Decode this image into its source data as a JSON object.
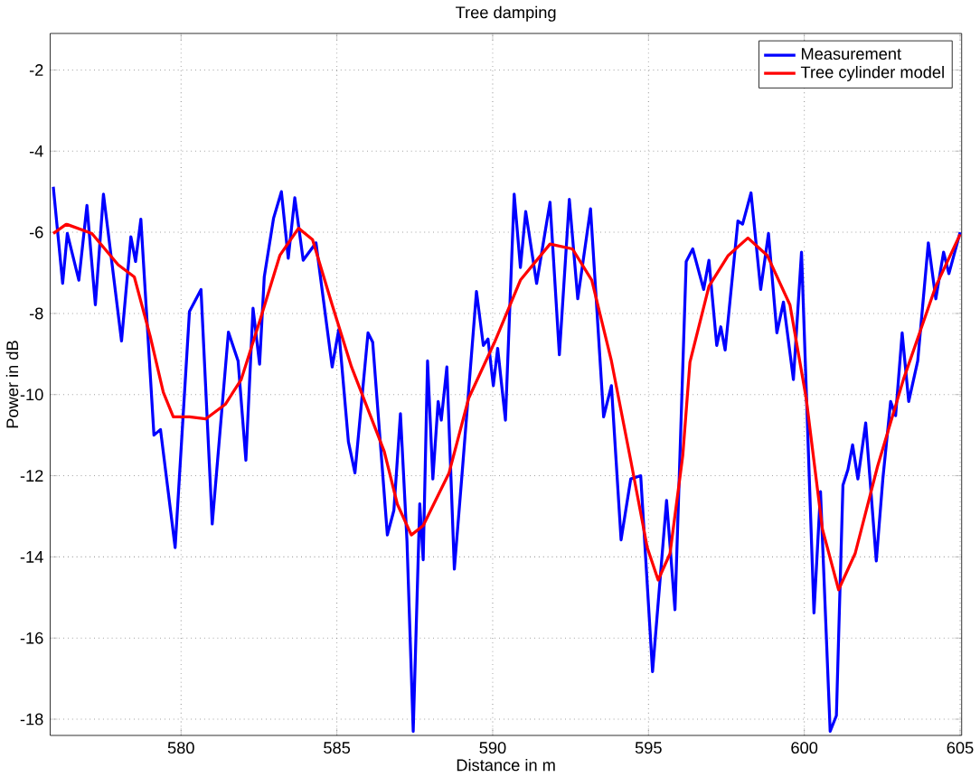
{
  "chart_data": {
    "type": "line",
    "title": "Tree damping",
    "xlabel": "Distance in m",
    "ylabel": "Power in dB",
    "xlim": [
      575.8,
      605.05
    ],
    "ylim": [
      -18.4,
      -1.1
    ],
    "xticks": [
      580,
      585,
      590,
      595,
      600,
      605
    ],
    "yticks": [
      -18,
      -16,
      -14,
      -12,
      -10,
      -8,
      -6,
      -4,
      -2
    ],
    "grid": true,
    "legend": "top right",
    "line_style": "solid",
    "marker": "none",
    "series": [
      {
        "name": "Measurement",
        "color": "#0000ff",
        "x": [
          575.9,
          576.2,
          576.35,
          576.72,
          576.98,
          577.25,
          577.51,
          578.09,
          578.39,
          578.54,
          578.71,
          579.13,
          579.34,
          579.81,
          580.27,
          580.64,
          581.0,
          581.52,
          581.83,
          582.08,
          582.31,
          582.52,
          582.67,
          582.97,
          583.22,
          583.44,
          583.65,
          583.92,
          584.33,
          584.85,
          585.06,
          585.37,
          585.58,
          586.0,
          586.15,
          586.62,
          586.83,
          587.04,
          587.25,
          587.45,
          587.66,
          587.77,
          587.91,
          588.08,
          588.25,
          588.35,
          588.53,
          588.77,
          589.02,
          589.48,
          589.7,
          589.85,
          590.02,
          590.16,
          590.41,
          590.69,
          590.89,
          591.06,
          591.41,
          591.84,
          592.14,
          592.46,
          592.73,
          593.14,
          593.56,
          593.81,
          594.12,
          594.43,
          594.75,
          595.13,
          595.58,
          595.85,
          596.21,
          596.42,
          596.77,
          596.94,
          597.19,
          597.32,
          597.46,
          597.87,
          598.02,
          598.29,
          598.6,
          598.85,
          599.12,
          599.33,
          599.65,
          599.91,
          600.31,
          600.52,
          600.83,
          601.03,
          601.24,
          601.4,
          601.55,
          601.72,
          601.97,
          602.31,
          602.52,
          602.77,
          602.93,
          603.14,
          603.35,
          603.64,
          603.98,
          604.22,
          604.47,
          604.64,
          605.0
        ],
        "values": [
          -4.88,
          -7.26,
          -6.03,
          -7.18,
          -5.34,
          -7.79,
          -5.06,
          -8.68,
          -6.11,
          -6.72,
          -5.68,
          -11.0,
          -10.86,
          -13.77,
          -7.95,
          -7.41,
          -13.19,
          -8.46,
          -9.17,
          -11.62,
          -7.87,
          -9.25,
          -7.1,
          -5.65,
          -5.0,
          -6.64,
          -5.15,
          -6.69,
          -6.26,
          -9.32,
          -8.4,
          -11.16,
          -11.93,
          -8.48,
          -8.71,
          -13.46,
          -12.85,
          -10.47,
          -13.61,
          -18.3,
          -12.69,
          -14.07,
          -9.17,
          -12.08,
          -10.17,
          -10.63,
          -9.32,
          -14.3,
          -11.93,
          -7.46,
          -8.79,
          -8.63,
          -9.78,
          -8.86,
          -10.63,
          -5.06,
          -6.87,
          -5.49,
          -7.26,
          -5.26,
          -9.02,
          -5.19,
          -7.64,
          -5.42,
          -10.55,
          -9.78,
          -13.58,
          -12.08,
          -12.0,
          -16.83,
          -12.61,
          -15.3,
          -6.72,
          -6.41,
          -7.41,
          -6.69,
          -8.79,
          -8.33,
          -8.9,
          -5.72,
          -5.8,
          -5.03,
          -7.41,
          -6.03,
          -8.48,
          -7.72,
          -9.63,
          -6.49,
          -15.38,
          -12.39,
          -18.3,
          -17.91,
          -12.23,
          -11.85,
          -11.24,
          -12.08,
          -10.7,
          -14.1,
          -12.08,
          -10.17,
          -10.52,
          -8.48,
          -10.17,
          -9.17,
          -6.26,
          -7.64,
          -6.49,
          -7.02,
          -6.0
        ]
      },
      {
        "name": "Tree cylinder model",
        "color": "#ff0000",
        "x": [
          575.9,
          576.32,
          577.14,
          577.98,
          578.5,
          579.01,
          579.43,
          579.75,
          580.27,
          580.79,
          581.42,
          581.93,
          582.56,
          583.17,
          583.77,
          584.22,
          584.85,
          585.47,
          586.52,
          586.94,
          587.39,
          587.77,
          588.6,
          589.23,
          590.06,
          590.89,
          591.84,
          592.56,
          593.18,
          593.81,
          594.43,
          594.96,
          595.31,
          595.69,
          596.1,
          596.33,
          596.94,
          597.56,
          598.19,
          598.81,
          599.54,
          600.06,
          600.58,
          601.1,
          601.63,
          602.35,
          603.18,
          604.22,
          605.0
        ],
        "values": [
          -6.03,
          -5.8,
          -6.03,
          -6.8,
          -7.1,
          -8.56,
          -9.94,
          -10.55,
          -10.55,
          -10.6,
          -10.24,
          -9.63,
          -8.1,
          -6.57,
          -5.9,
          -6.18,
          -7.79,
          -9.32,
          -11.4,
          -12.7,
          -13.46,
          -13.23,
          -11.93,
          -10.09,
          -8.71,
          -7.18,
          -6.29,
          -6.41,
          -7.18,
          -9.17,
          -11.62,
          -13.77,
          -14.57,
          -13.92,
          -11.5,
          -9.2,
          -7.33,
          -6.57,
          -6.14,
          -6.57,
          -7.79,
          -10.09,
          -13.31,
          -14.81,
          -13.92,
          -11.77,
          -9.63,
          -7.33,
          -6.05
        ]
      }
    ]
  }
}
